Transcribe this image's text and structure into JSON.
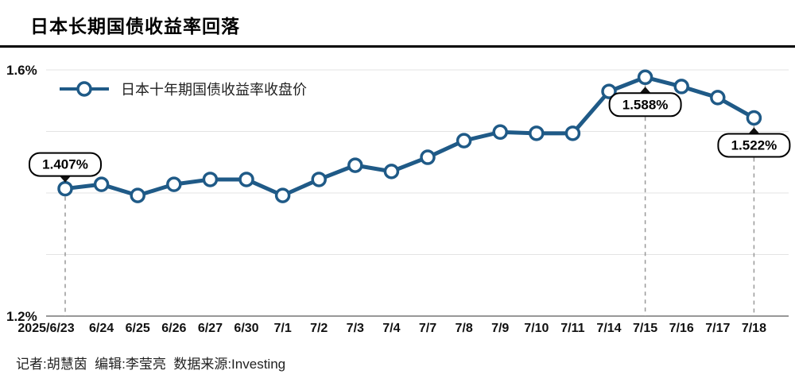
{
  "page": {
    "title": "日本长期国债收益率回落",
    "footer": "记者:胡慧茵  编辑:李莹亮  数据来源:Investing"
  },
  "chart_data": {
    "type": "line",
    "title": "日本长期国债收益率回落",
    "legend": "日本十年期国债收益率收盘价",
    "legend_position": "top-left",
    "grid": true,
    "line_color": "#1f5a87",
    "ylim": [
      1.2,
      1.6
    ],
    "grid_values": [
      1.6,
      1.5,
      1.4,
      1.3,
      1.2
    ],
    "yticks": [
      {
        "label": "1.6%",
        "value": 1.6
      },
      {
        "label": "1.2%",
        "value": 1.2
      }
    ],
    "x": [
      "2025/6/23",
      "6/24",
      "6/25",
      "6/26",
      "6/27",
      "6/30",
      "7/1",
      "7/2",
      "7/3",
      "7/4",
      "7/7",
      "7/8",
      "7/9",
      "7/10",
      "7/11",
      "7/14",
      "7/15",
      "7/16",
      "7/17",
      "7/18"
    ],
    "values": [
      1.407,
      1.414,
      1.396,
      1.414,
      1.422,
      1.422,
      1.396,
      1.422,
      1.445,
      1.435,
      1.458,
      1.485,
      1.499,
      1.497,
      1.497,
      1.565,
      1.588,
      1.573,
      1.555,
      1.522
    ],
    "annotations": [
      {
        "x": "2025/6/23",
        "index": 0,
        "label": "1.407%",
        "box_position": "above"
      },
      {
        "x": "7/15",
        "index": 16,
        "label": "1.588%",
        "box_position": "below"
      },
      {
        "x": "7/18",
        "index": 19,
        "label": "1.522%",
        "box_position": "below"
      }
    ]
  }
}
